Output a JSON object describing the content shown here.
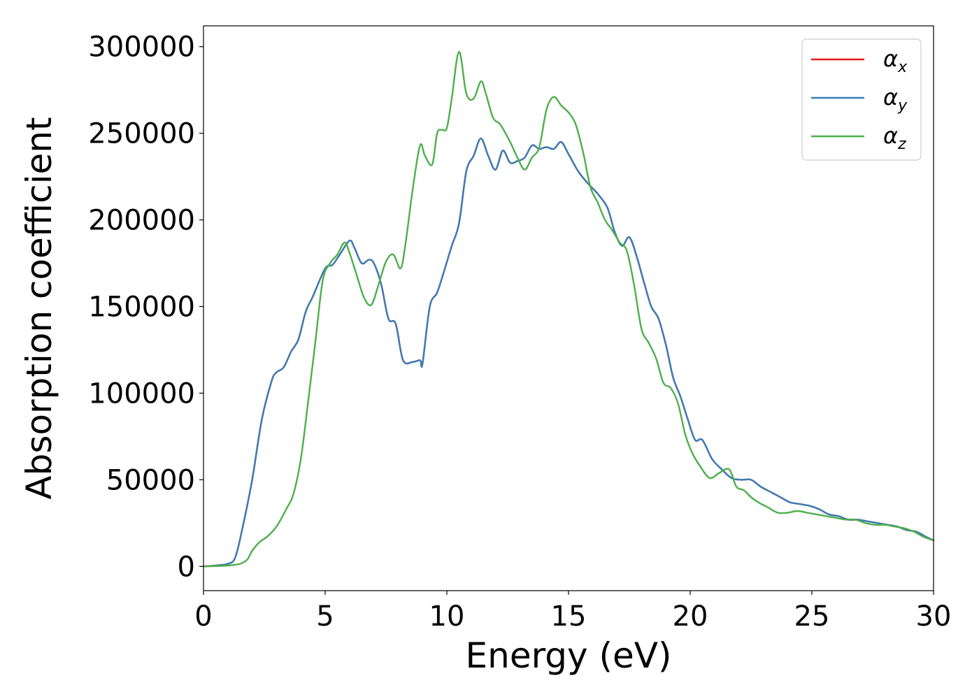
{
  "chart_data": {
    "type": "line",
    "title": "",
    "xlabel": "Energy (eV)",
    "ylabel": "Absorption coefficient",
    "xlim": [
      0,
      30
    ],
    "ylim": [
      -14000,
      312000
    ],
    "xticks": [
      0,
      5,
      10,
      15,
      20,
      25,
      30
    ],
    "xtick_labels": [
      "0",
      "5",
      "10",
      "15",
      "20",
      "25",
      "30"
    ],
    "yticks": [
      0,
      50000,
      100000,
      150000,
      200000,
      250000,
      300000
    ],
    "ytick_labels": [
      "0",
      "50000",
      "100000",
      "150000",
      "200000",
      "250000",
      "300000"
    ],
    "grid": false,
    "legend_position": "top-right",
    "series": [
      {
        "name": "αx",
        "symbol": "α",
        "subscript": "x",
        "color": "#e41a1c",
        "x": [
          0,
          0.5,
          1,
          1.3,
          1.6,
          2,
          2.4,
          2.8,
          3.0,
          3.3,
          3.6,
          3.9,
          4.2,
          4.5,
          5.0,
          5.3,
          5.6,
          6.0,
          6.2,
          6.5,
          6.8,
          7.0,
          7.3,
          7.6,
          7.9,
          8.2,
          8.6,
          8.9,
          9.0,
          9.3,
          9.6,
          9.9,
          10.2,
          10.5,
          10.8,
          11.1,
          11.4,
          11.7,
          12.0,
          12.3,
          12.6,
          12.9,
          13.2,
          13.5,
          13.8,
          14.1,
          14.4,
          14.7,
          15.0,
          15.4,
          15.8,
          16.2,
          16.6,
          16.9,
          17.2,
          17.5,
          17.8,
          18.1,
          18.4,
          18.7,
          19.0,
          19.3,
          19.6,
          19.9,
          20.2,
          20.5,
          20.9,
          21.3,
          21.7,
          22.1,
          22.5,
          22.9,
          23.3,
          23.7,
          24.1,
          24.5,
          24.9,
          25.3,
          25.7,
          26.1,
          26.5,
          26.9,
          27.3,
          27.7,
          28.1,
          28.5,
          28.9,
          29.3,
          29.7,
          30
        ],
        "y": [
          0,
          500,
          1500,
          5000,
          22000,
          50000,
          85000,
          107000,
          112000,
          115000,
          124000,
          131000,
          147000,
          156000,
          172000,
          174000,
          180000,
          188000,
          184000,
          175000,
          177000,
          175000,
          163000,
          143000,
          140000,
          119000,
          118000,
          119000,
          117000,
          150000,
          158000,
          171000,
          185000,
          198000,
          228000,
          237000,
          247000,
          237000,
          229000,
          240000,
          233000,
          234000,
          236000,
          243000,
          241000,
          242000,
          241000,
          245000,
          238000,
          228000,
          221000,
          215000,
          207000,
          193000,
          185000,
          190000,
          179000,
          164000,
          150000,
          143000,
          128000,
          109000,
          98000,
          85000,
          73000,
          73000,
          62000,
          56000,
          51000,
          50000,
          50000,
          46000,
          43000,
          40000,
          37000,
          36000,
          35000,
          33000,
          30000,
          29000,
          27000,
          27000,
          26000,
          25000,
          24000,
          23000,
          21000,
          20000,
          17000,
          15000
        ]
      },
      {
        "name": "αy",
        "symbol": "α",
        "subscript": "y",
        "color": "#377eb8",
        "x": [
          0,
          0.5,
          1,
          1.3,
          1.6,
          2,
          2.4,
          2.8,
          3.0,
          3.3,
          3.6,
          3.9,
          4.2,
          4.5,
          5.0,
          5.3,
          5.6,
          6.0,
          6.2,
          6.5,
          6.8,
          7.0,
          7.3,
          7.6,
          7.9,
          8.2,
          8.6,
          8.9,
          9.0,
          9.3,
          9.6,
          9.9,
          10.2,
          10.5,
          10.8,
          11.1,
          11.4,
          11.7,
          12.0,
          12.3,
          12.6,
          12.9,
          13.2,
          13.5,
          13.8,
          14.1,
          14.4,
          14.7,
          15.0,
          15.4,
          15.8,
          16.2,
          16.6,
          16.9,
          17.2,
          17.5,
          17.8,
          18.1,
          18.4,
          18.7,
          19.0,
          19.3,
          19.6,
          19.9,
          20.2,
          20.5,
          20.9,
          21.3,
          21.7,
          22.1,
          22.5,
          22.9,
          23.3,
          23.7,
          24.1,
          24.5,
          24.9,
          25.3,
          25.7,
          26.1,
          26.5,
          26.9,
          27.3,
          27.7,
          28.1,
          28.5,
          28.9,
          29.3,
          29.7,
          30
        ],
        "y": [
          0,
          500,
          1500,
          5000,
          22000,
          50000,
          85000,
          107000,
          112000,
          115000,
          124000,
          131000,
          147000,
          156000,
          172000,
          174000,
          180000,
          188000,
          184000,
          175000,
          177000,
          175000,
          163000,
          143000,
          140000,
          119000,
          118000,
          119000,
          117000,
          150000,
          158000,
          171000,
          185000,
          198000,
          228000,
          237000,
          247000,
          237000,
          229000,
          240000,
          233000,
          234000,
          236000,
          243000,
          241000,
          242000,
          241000,
          245000,
          238000,
          228000,
          221000,
          215000,
          207000,
          193000,
          185000,
          190000,
          179000,
          164000,
          150000,
          143000,
          128000,
          109000,
          98000,
          85000,
          73000,
          73000,
          62000,
          56000,
          51000,
          50000,
          50000,
          46000,
          43000,
          40000,
          37000,
          36000,
          35000,
          33000,
          30000,
          29000,
          27000,
          27000,
          26000,
          25000,
          24000,
          23000,
          21000,
          20000,
          17000,
          15000
        ]
      },
      {
        "name": "αz",
        "symbol": "α",
        "subscript": "z",
        "color": "#4daf4a",
        "x": [
          0,
          0.5,
          1,
          1.5,
          1.8,
          2.0,
          2.3,
          2.6,
          3.0,
          3.4,
          3.7,
          4.0,
          4.3,
          4.6,
          4.9,
          5.2,
          5.5,
          5.8,
          6.0,
          6.3,
          6.6,
          6.9,
          7.2,
          7.5,
          7.8,
          8.1,
          8.3,
          8.6,
          8.9,
          9.1,
          9.4,
          9.6,
          9.8,
          10.0,
          10.2,
          10.5,
          10.8,
          11.1,
          11.4,
          11.6,
          11.9,
          12.2,
          12.6,
          12.9,
          13.2,
          13.5,
          13.8,
          14.1,
          14.4,
          14.7,
          15.0,
          15.3,
          15.6,
          15.9,
          16.2,
          16.5,
          16.8,
          17.1,
          17.4,
          17.7,
          18.0,
          18.3,
          18.6,
          18.9,
          19.2,
          19.5,
          19.8,
          20.1,
          20.4,
          20.8,
          21.2,
          21.6,
          21.9,
          22.2,
          22.5,
          22.8,
          23.2,
          23.6,
          24.0,
          24.4,
          24.8,
          25.2,
          25.6,
          26.0,
          26.4,
          26.8,
          27.2,
          27.6,
          28.0,
          28.4,
          28.8,
          29.2,
          29.6,
          30
        ],
        "y": [
          0,
          200,
          500,
          1500,
          4000,
          9000,
          14000,
          17000,
          23000,
          33000,
          42000,
          62000,
          95000,
          130000,
          165000,
          175000,
          180000,
          187000,
          181000,
          168000,
          155000,
          151000,
          163000,
          176000,
          180000,
          172000,
          186000,
          218000,
          243000,
          237000,
          232000,
          250000,
          252000,
          253000,
          270000,
          297000,
          273000,
          270000,
          280000,
          273000,
          259000,
          255000,
          245000,
          236000,
          229000,
          236000,
          242000,
          264000,
          271000,
          266000,
          262000,
          255000,
          239000,
          219000,
          210000,
          200000,
          194000,
          187000,
          182000,
          162000,
          137000,
          129000,
          120000,
          106000,
          103000,
          94000,
          76000,
          65000,
          58000,
          51000,
          54000,
          56000,
          46000,
          44000,
          40000,
          37000,
          34000,
          31000,
          31000,
          32000,
          31000,
          30000,
          29000,
          28000,
          27000,
          27000,
          25000,
          24000,
          24000,
          23000,
          22000,
          20000,
          17000,
          15000
        ]
      }
    ]
  }
}
